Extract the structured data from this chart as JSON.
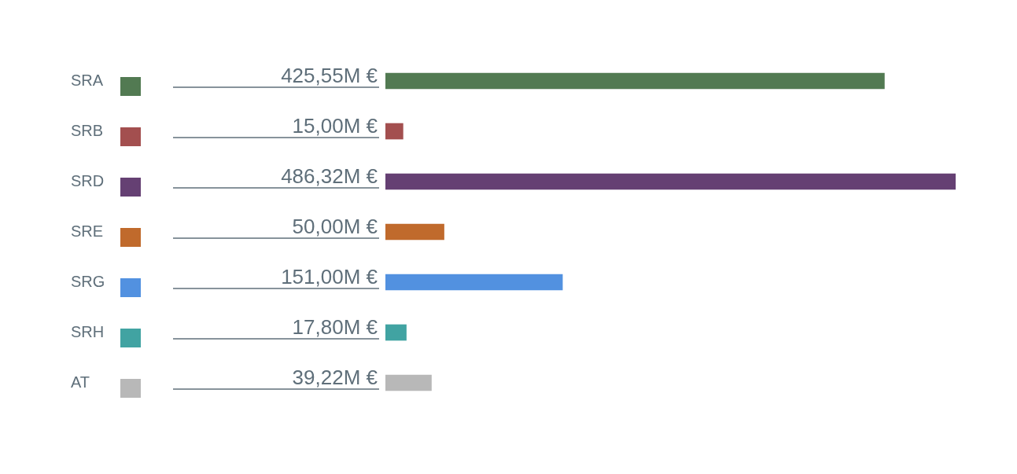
{
  "chart_data": {
    "type": "bar",
    "orientation": "horizontal",
    "categories": [
      "SRA",
      "SRB",
      "SRD",
      "SRE",
      "SRG",
      "SRH",
      "AT"
    ],
    "values": [
      425.55,
      15,
      486.32,
      50,
      151,
      17.8,
      39.22
    ],
    "colors": [
      "#527a52",
      "#a34f4f",
      "#654073",
      "#c06a2c",
      "#5291e0",
      "#41a3a2",
      "#b8b8b8"
    ],
    "value_labels": [
      "425,55M €",
      "15,00M €",
      "486,32M €",
      "50,00M €",
      "151,00M €",
      "17,80M €",
      "39,22M €"
    ]
  }
}
